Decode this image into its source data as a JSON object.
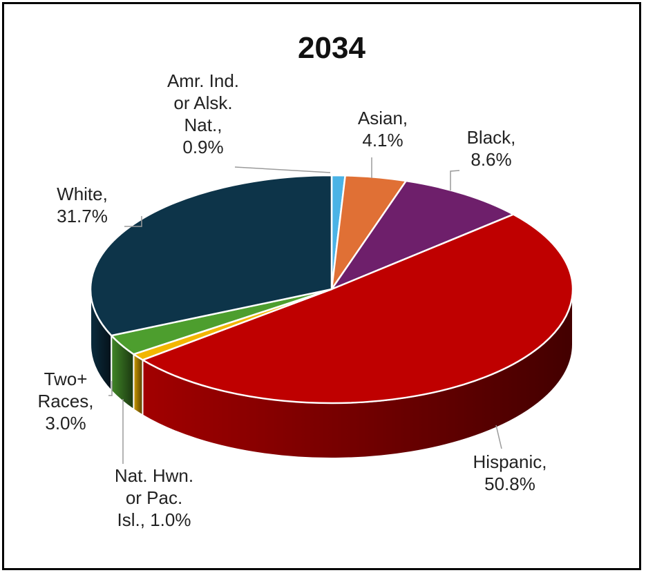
{
  "chart_data": {
    "type": "pie",
    "title": "2034",
    "slices": [
      {
        "label": "Amr. Ind. or Alsk. Nat.",
        "value": 0.9,
        "value_label": "0.9%",
        "color": "#4ab3e6"
      },
      {
        "label": "Asian",
        "value": 4.1,
        "value_label": "4.1%",
        "color": "#e07035"
      },
      {
        "label": "Black",
        "value": 8.6,
        "value_label": "8.6%",
        "color": "#6e1f6b"
      },
      {
        "label": "Hispanic",
        "value": 50.8,
        "value_label": "50.8%",
        "color": "#bf0000"
      },
      {
        "label": "Nat. Hwn. or Pac. Isl.",
        "value": 1.0,
        "value_label": "1.0%",
        "color": "#f2b600"
      },
      {
        "label": "Two+ Races",
        "value": 3.0,
        "value_label": "3.0%",
        "color": "#4d9e2e"
      },
      {
        "label": "White",
        "value": 31.7,
        "value_label": "31.7%",
        "color": "#0d3449"
      }
    ],
    "label_lines": [
      [
        "Amr. Ind.",
        "or Alsk.",
        "Nat.,",
        "0.9%"
      ],
      [
        "Asian,",
        "4.1%"
      ],
      [
        "Black,",
        "8.6%"
      ],
      [
        "Hispanic,",
        "50.8%"
      ],
      [
        "Nat. Hwn.",
        "or Pac.",
        "Isl., 1.0%"
      ],
      [
        "Two+",
        "Races,",
        "3.0%"
      ],
      [
        "White,",
        "31.7%"
      ]
    ],
    "style": "3d-pie",
    "legend": "none"
  }
}
